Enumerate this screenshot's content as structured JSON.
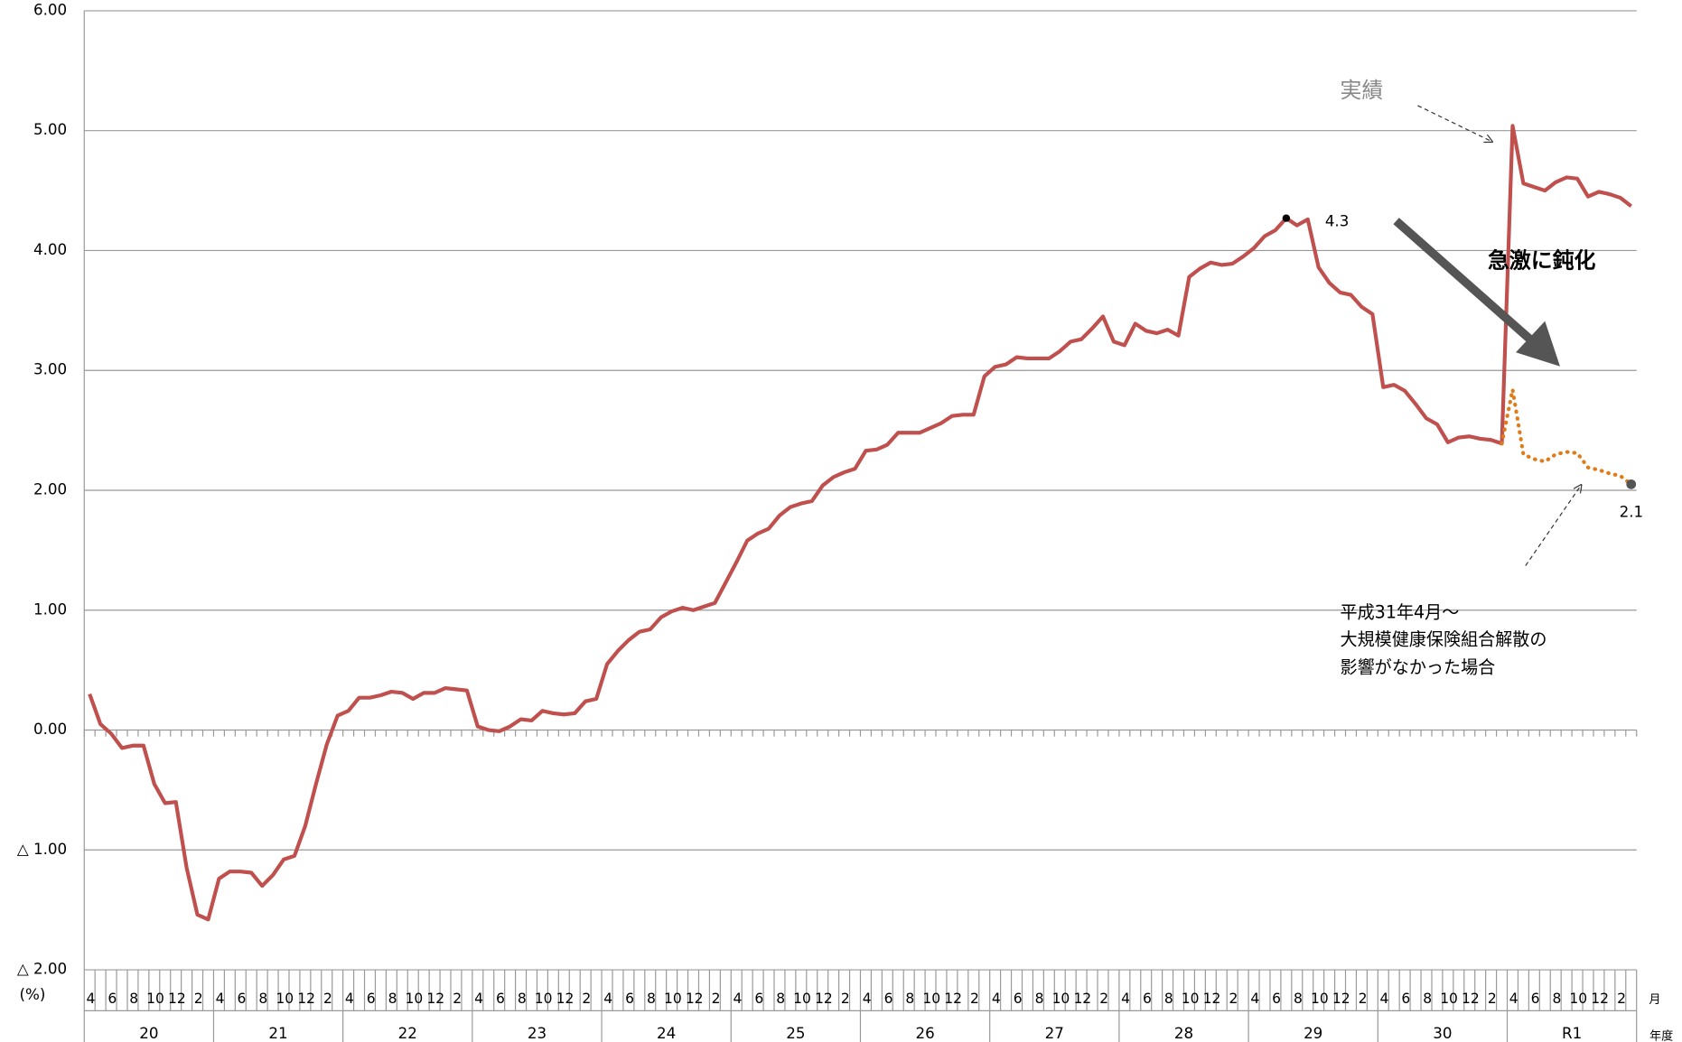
{
  "chart_data": {
    "type": "line",
    "categories": [
      "4",
      null,
      "6",
      null,
      "8",
      null,
      "10",
      null,
      "12",
      null,
      "2",
      null,
      "4",
      null,
      "6",
      null,
      "8",
      null,
      "10",
      null,
      "12",
      null,
      "2",
      null,
      "4",
      null,
      "6",
      null,
      "8",
      null,
      "10",
      null,
      "12",
      null,
      "2",
      null,
      "4",
      null,
      "6",
      null,
      "8",
      null,
      "10",
      null,
      "12",
      null,
      "2",
      null,
      "4",
      null,
      "6",
      null,
      "8",
      null,
      "10",
      null,
      "12",
      null,
      "2",
      null,
      "4",
      null,
      "6",
      null,
      "8",
      null,
      "10",
      null,
      "12",
      null,
      "2",
      null,
      "4",
      null,
      "6",
      null,
      "8",
      null,
      "10",
      null,
      "12",
      null,
      "2",
      null,
      "4",
      null,
      "6",
      null,
      "8",
      null,
      "10",
      null,
      "12",
      null,
      "2",
      null,
      "4",
      null,
      "6",
      null,
      "8",
      null,
      "10",
      null,
      "12",
      null,
      "2",
      null,
      "4",
      null,
      "6",
      null,
      "8",
      null,
      "10",
      null,
      "12",
      null,
      "2",
      null,
      "4",
      null,
      "6",
      null,
      "8",
      null,
      "10",
      null,
      "12",
      null,
      "2",
      null,
      "4",
      null,
      "6",
      null,
      "8",
      null,
      "10",
      null,
      "12",
      null,
      "2",
      null
    ],
    "year_groups": [
      "20",
      "21",
      "22",
      "23",
      "24",
      "25",
      "26",
      "27",
      "28",
      "29",
      "30",
      "R1"
    ],
    "x_unit_month": "月",
    "x_unit_year": "年度",
    "y_unit": "(%)",
    "ylim": [
      -2,
      6
    ],
    "yticks": [
      {
        "value": 6,
        "label": "6.00"
      },
      {
        "value": 5,
        "label": "5.00"
      },
      {
        "value": 4,
        "label": "4.00"
      },
      {
        "value": 3,
        "label": "3.00"
      },
      {
        "value": 2,
        "label": "2.00"
      },
      {
        "value": 1,
        "label": "1.00"
      },
      {
        "value": 0,
        "label": "0.00"
      },
      {
        "value": -1,
        "label": "△ 1.00"
      },
      {
        "value": -2,
        "label": "△ 2.00"
      }
    ],
    "grid": true,
    "series": [
      {
        "color": "#c0504d",
        "style": "solid",
        "values": [
          0.3,
          0.05,
          -0.03,
          -0.15,
          -0.13,
          -0.13,
          -0.45,
          -0.61,
          -0.6,
          -1.15,
          -1.54,
          -1.58,
          -1.24,
          -1.18,
          -1.18,
          -1.19,
          -1.3,
          -1.21,
          -1.08,
          -1.05,
          -0.8,
          -0.45,
          -0.12,
          0.12,
          0.16,
          0.27,
          0.27,
          0.29,
          0.32,
          0.31,
          0.26,
          0.31,
          0.31,
          0.35,
          0.34,
          0.33,
          0.03,
          0.0,
          -0.01,
          0.03,
          0.09,
          0.08,
          0.16,
          0.14,
          0.13,
          0.14,
          0.24,
          0.26,
          0.55,
          0.66,
          0.75,
          0.82,
          0.84,
          0.94,
          0.99,
          1.02,
          1.0,
          1.03,
          1.06,
          1.23,
          1.4,
          1.58,
          1.64,
          1.68,
          1.79,
          1.86,
          1.89,
          1.91,
          2.04,
          2.11,
          2.15,
          2.18,
          2.33,
          2.34,
          2.38,
          2.48,
          2.48,
          2.48,
          2.52,
          2.56,
          2.62,
          2.63,
          2.63,
          2.95,
          3.03,
          3.05,
          3.11,
          3.1,
          3.1,
          3.1,
          3.16,
          3.24,
          3.26,
          3.35,
          3.45,
          3.24,
          3.21,
          3.39,
          3.33,
          3.31,
          3.34,
          3.29,
          3.78,
          3.85,
          3.9,
          3.88,
          3.89,
          3.95,
          4.02,
          4.12,
          4.17,
          4.27,
          4.21,
          4.26,
          3.86,
          3.73,
          3.65,
          3.63,
          3.53,
          3.47,
          2.86,
          2.88,
          2.83,
          2.72,
          2.6,
          2.55,
          2.4,
          2.44,
          2.45,
          2.43,
          2.42,
          2.39,
          5.04,
          4.56,
          4.53,
          4.5,
          4.57,
          4.61,
          4.6,
          4.45,
          4.49,
          4.47,
          4.44,
          4.37
        ]
      },
      {
        "color": "#e07b1a",
        "style": "dotted",
        "values": [
          null,
          null,
          null,
          null,
          null,
          null,
          null,
          null,
          null,
          null,
          null,
          null,
          null,
          null,
          null,
          null,
          null,
          null,
          null,
          null,
          null,
          null,
          null,
          null,
          null,
          null,
          null,
          null,
          null,
          null,
          null,
          null,
          null,
          null,
          null,
          null,
          null,
          null,
          null,
          null,
          null,
          null,
          null,
          null,
          null,
          null,
          null,
          null,
          null,
          null,
          null,
          null,
          null,
          null,
          null,
          null,
          null,
          null,
          null,
          null,
          null,
          null,
          null,
          null,
          null,
          null,
          null,
          null,
          null,
          null,
          null,
          null,
          null,
          null,
          null,
          null,
          null,
          null,
          null,
          null,
          null,
          null,
          null,
          null,
          null,
          null,
          null,
          null,
          null,
          null,
          null,
          null,
          null,
          null,
          null,
          null,
          null,
          null,
          null,
          null,
          null,
          null,
          null,
          null,
          null,
          null,
          null,
          null,
          null,
          null,
          null,
          null,
          null,
          null,
          null,
          null,
          null,
          null,
          null,
          null,
          null,
          null,
          null,
          null,
          null,
          null,
          null,
          null,
          null,
          null,
          null,
          2.39,
          2.84,
          2.3,
          2.26,
          2.24,
          2.3,
          2.32,
          2.31,
          2.19,
          2.17,
          2.14,
          2.12,
          2.05
        ]
      }
    ],
    "annotations": {
      "actual": "実績",
      "slowdown": "急激に鈍化",
      "peak_label": "4.3",
      "end_label": "2.1",
      "note": [
        "平成31年4月～",
        "大規模健康保険組合解散の",
        "影響がなかった場合"
      ]
    }
  }
}
